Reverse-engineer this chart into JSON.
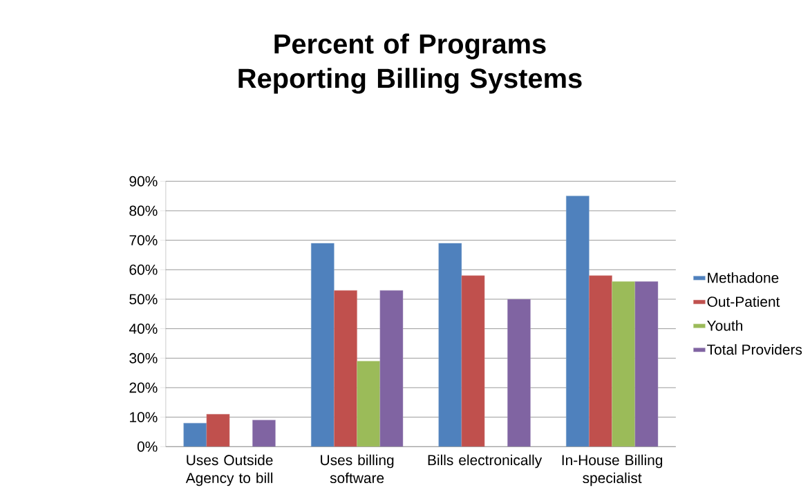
{
  "chart_data": {
    "type": "bar",
    "title": "Percent of Programs Reporting Billing Systems",
    "categories": [
      "Uses Outside Agency to bill",
      "Uses billing software",
      "Bills electronically",
      "In-House Billing specialist"
    ],
    "series": [
      {
        "name": "Methadone",
        "color": "#4f81bd",
        "values": [
          8,
          69,
          69,
          85
        ]
      },
      {
        "name": "Out-Patient",
        "color": "#c0504d",
        "values": [
          11,
          53,
          58,
          58
        ]
      },
      {
        "name": "Youth",
        "color": "#9bbb59",
        "values": [
          null,
          29,
          null,
          56
        ]
      },
      {
        "name": "Total Providers",
        "color": "#8064a2",
        "values": [
          9,
          53,
          50,
          56
        ]
      }
    ],
    "ylim": [
      0,
      90
    ],
    "yticks": [
      {
        "value": 0,
        "label": "0%"
      },
      {
        "value": 10,
        "label": "10%"
      },
      {
        "value": 20,
        "label": "20%"
      },
      {
        "value": 30,
        "label": "30%"
      },
      {
        "value": 40,
        "label": "40%"
      },
      {
        "value": 50,
        "label": "50%"
      },
      {
        "value": 60,
        "label": "60%"
      },
      {
        "value": 70,
        "label": "70%"
      },
      {
        "value": 80,
        "label": "80%"
      },
      {
        "value": 90,
        "label": "90%"
      }
    ],
    "grid": "y",
    "legend": "right"
  }
}
